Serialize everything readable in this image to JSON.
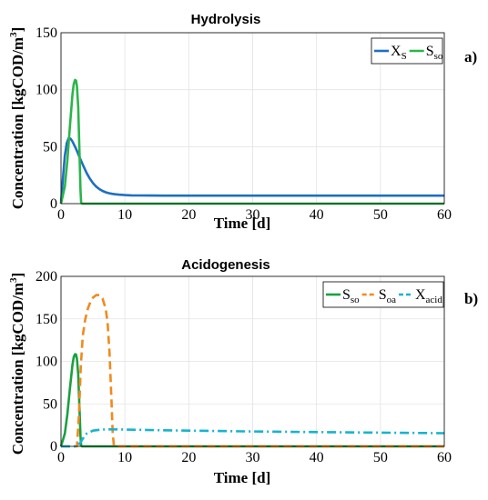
{
  "chart_data": [
    {
      "type": "line",
      "panel_label": "a)",
      "title": "Hydrolysis",
      "xlabel": "Time [d]",
      "ylabel_main": "Concentration [kgCOD/m",
      "ylabel_sup": "3",
      "ylabel_end": "]",
      "xlim": [
        0,
        60
      ],
      "ylim": [
        0,
        150
      ],
      "xticks": [
        0,
        10,
        20,
        30,
        40,
        50,
        60
      ],
      "yticks": [
        0,
        50,
        100,
        150
      ],
      "grid": true,
      "legend_position": "top-right",
      "series": [
        {
          "name": "X",
          "sub": "S",
          "color": "#1f6fc0",
          "dash": "solid",
          "x": [
            0,
            0.3,
            0.6,
            0.9,
            1.2,
            1.5,
            1.8,
            2.2,
            2.6,
            3,
            3.5,
            4,
            4.5,
            5,
            5.5,
            6,
            6.5,
            7,
            7.5,
            8,
            8.5,
            9,
            10,
            11,
            12,
            14,
            16,
            20,
            30,
            40,
            50,
            60
          ],
          "y": [
            0,
            22,
            42,
            53,
            57.5,
            57,
            54.5,
            50,
            45,
            39.5,
            33,
            27,
            22,
            18,
            15,
            12.8,
            11.2,
            10,
            9.2,
            8.6,
            8.2,
            7.9,
            7.5,
            7.3,
            7.2,
            7.1,
            7.0,
            7.0,
            7.0,
            7.0,
            7.0,
            7.0
          ]
        },
        {
          "name": "S",
          "sub": "so",
          "color": "#2bb54a",
          "dash": "solid",
          "x": [
            0,
            0.6,
            1.0,
            1.4,
            1.8,
            2.0,
            2.2,
            2.35,
            2.5,
            2.7,
            2.9,
            3.05,
            3.15,
            3.3,
            10,
            20,
            30,
            40,
            50,
            60
          ],
          "y": [
            0,
            15,
            38,
            68,
            96,
            105,
            108.5,
            108,
            103,
            85,
            45,
            12,
            1,
            0,
            0,
            0,
            0,
            0,
            0,
            0
          ]
        }
      ]
    },
    {
      "type": "line",
      "panel_label": "b)",
      "title": "Acidogenesis",
      "xlabel": "Time [d]",
      "ylabel_main": "Concentration [kgCOD/m",
      "ylabel_sup": "3",
      "ylabel_end": "]",
      "xlim": [
        0,
        60
      ],
      "ylim": [
        0,
        200
      ],
      "xticks": [
        0,
        10,
        20,
        30,
        40,
        50,
        60
      ],
      "yticks": [
        0,
        50,
        100,
        150,
        200
      ],
      "grid": true,
      "legend_position": "top-right",
      "series": [
        {
          "name": "S",
          "sub": "so",
          "color": "#1aa041",
          "dash": "solid",
          "x": [
            0,
            0.6,
            1.0,
            1.4,
            1.8,
            2.0,
            2.2,
            2.35,
            2.5,
            2.7,
            2.9,
            3.05,
            3.15,
            3.3,
            10,
            20,
            30,
            40,
            50,
            60
          ],
          "y": [
            0,
            15,
            38,
            68,
            96,
            105,
            108.5,
            108,
            103,
            85,
            45,
            12,
            1,
            0,
            0,
            0,
            0,
            0,
            0,
            0
          ]
        },
        {
          "name": "S",
          "sub": "oa",
          "color": "#f08a1e",
          "dash": "dashed",
          "x": [
            0,
            2.5,
            2.8,
            3.1,
            3.4,
            3.8,
            4.2,
            4.6,
            5.0,
            5.5,
            6.0,
            6.5,
            7.0,
            7.3,
            7.6,
            7.9,
            8.1,
            8.3,
            10,
            20,
            30,
            40,
            50,
            60
          ],
          "y": [
            0,
            0,
            35,
            95,
            130,
            150,
            162,
            170,
            175,
            178,
            178,
            174,
            162,
            145,
            110,
            55,
            15,
            0,
            0,
            0,
            0,
            0,
            0,
            0
          ]
        },
        {
          "name": "X",
          "sub": "acid",
          "color": "#17b3cf",
          "dash": "dashdot",
          "x": [
            0,
            2.5,
            3.0,
            3.5,
            4,
            5,
            6,
            7,
            8,
            10,
            15,
            20,
            30,
            40,
            50,
            60
          ],
          "y": [
            0,
            0,
            4,
            10,
            15,
            18.5,
            19.5,
            20,
            20,
            19.8,
            19,
            18.5,
            17.5,
            16.8,
            16.2,
            15.5
          ]
        }
      ]
    }
  ]
}
